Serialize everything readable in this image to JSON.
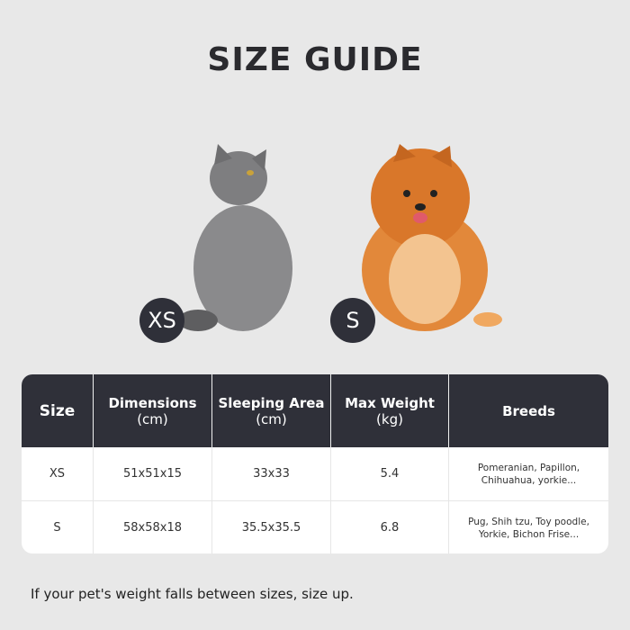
{
  "title": "SIZE GUIDE",
  "pets": [
    {
      "badge": "XS",
      "animal": "cat"
    },
    {
      "badge": "S",
      "animal": "dog"
    }
  ],
  "table": {
    "headers": [
      [
        "Size",
        ""
      ],
      [
        "Dimensions",
        "(cm)"
      ],
      [
        "Sleeping Area",
        "(cm)"
      ],
      [
        "Max Weight",
        "(kg)"
      ],
      [
        "Breeds",
        ""
      ]
    ],
    "rows": [
      {
        "size": "XS",
        "dimensions": "51x51x15",
        "sleeping_area": "33x33",
        "max_weight": "5.4",
        "breeds": [
          "Pomeranian, Papillon,",
          "Chihuahua, yorkie..."
        ]
      },
      {
        "size": "S",
        "dimensions": "58x58x18",
        "sleeping_area": "35.5x35.5",
        "max_weight": "6.8",
        "breeds": [
          "Pug, Shih tzu, Toy poodle,",
          "Yorkie, Bichon Frise..."
        ]
      }
    ]
  },
  "note": "If your pet's weight falls between sizes, size up.",
  "colors": {
    "header_bg": "#2f3039",
    "background": "#e8e8e8"
  }
}
